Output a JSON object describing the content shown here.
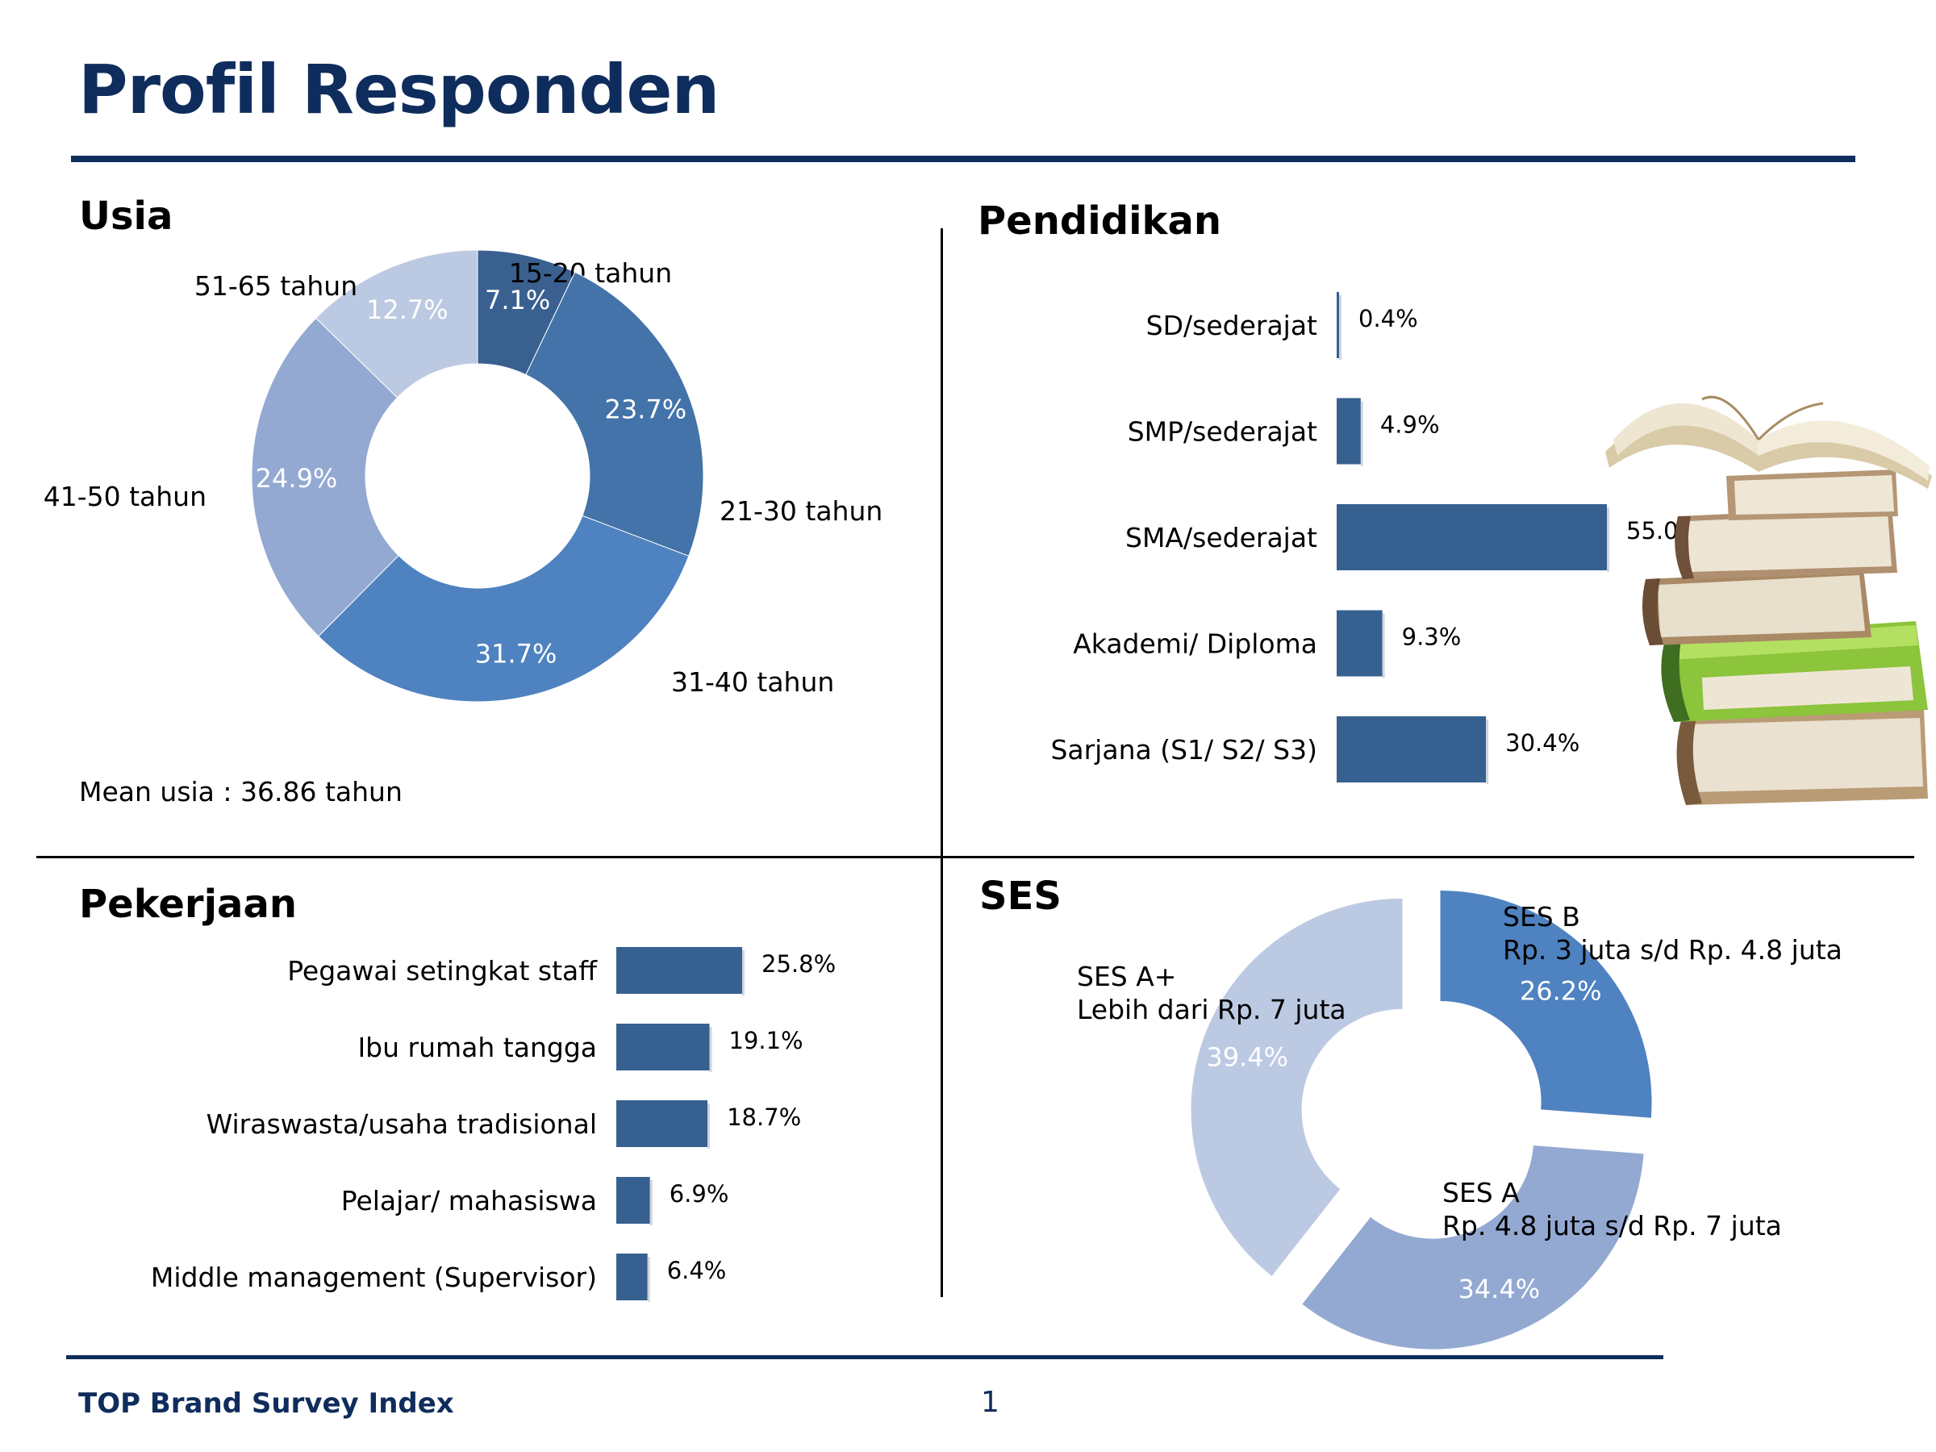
{
  "page": {
    "title": "Profil Responden",
    "footer_brand": "TOP Brand Survey Index",
    "page_number": "1"
  },
  "sections": {
    "usia": "Usia",
    "pendidikan": "Pendidikan",
    "pekerjaan": "Pekerjaan",
    "ses": "SES"
  },
  "usia_note": "Mean usia : 36.86 tahun",
  "colors": {
    "navy": "#0f2d5c",
    "bar": "#36608f",
    "c1": "#3a6090",
    "c2": "#4373a8",
    "c3": "#4f82c0",
    "c4": "#93a9d2",
    "c5": "#bcc9e2"
  },
  "chart_data": [
    {
      "id": "usia",
      "type": "pie",
      "variant": "donut",
      "title": "Usia",
      "categories": [
        "15-20 tahun",
        "21-30 tahun",
        "31-40 tahun",
        "41-50 tahun",
        "51-65 tahun"
      ],
      "values": [
        7.1,
        23.7,
        31.7,
        24.9,
        12.7
      ],
      "data_labels": [
        "7.1%",
        "23.7%",
        "31.7%",
        "24.9%",
        "12.7%"
      ],
      "colors": [
        "#3a6090",
        "#4373a8",
        "#4f82c0",
        "#93a9d2",
        "#bcc9e2"
      ]
    },
    {
      "id": "pendidikan",
      "type": "bar",
      "orientation": "horizontal",
      "title": "Pendidikan",
      "categories": [
        "SD/sederajat",
        "SMP/sederajat",
        "SMA/sederajat",
        "Akademi/ Diploma",
        "Sarjana (S1/ S2/ S3)"
      ],
      "values": [
        0.4,
        4.9,
        55.0,
        9.3,
        30.4
      ],
      "data_labels": [
        "0.4%",
        "4.9%",
        "55.0%",
        "9.3%",
        "30.4%"
      ],
      "xlim": [
        0,
        55
      ]
    },
    {
      "id": "pekerjaan",
      "type": "bar",
      "orientation": "horizontal",
      "title": "Pekerjaan",
      "categories": [
        "Pegawai setingkat staff",
        "Ibu rumah tangga",
        "Wiraswasta/usaha tradisional",
        "Pelajar/ mahasiswa",
        "Middle management (Supervisor)"
      ],
      "values": [
        25.8,
        19.1,
        18.7,
        6.9,
        6.4
      ],
      "data_labels": [
        "25.8%",
        "19.1%",
        "18.7%",
        "6.9%",
        "6.4%"
      ],
      "xlim": [
        0,
        25.8
      ]
    },
    {
      "id": "ses",
      "type": "pie",
      "variant": "exploded donut",
      "title": "SES",
      "categories": [
        "SES B\nRp. 3 juta s/d Rp. 4.8 juta",
        "SES A\nRp. 4.8 juta s/d Rp. 7 juta",
        "SES A+\nLebih dari Rp. 7 juta"
      ],
      "values": [
        26.2,
        34.4,
        39.4
      ],
      "data_labels": [
        "26.2%",
        "34.4%",
        "39.4%"
      ],
      "colors": [
        "#4f82c0",
        "#93a9d2",
        "#bcc9e2"
      ]
    }
  ]
}
